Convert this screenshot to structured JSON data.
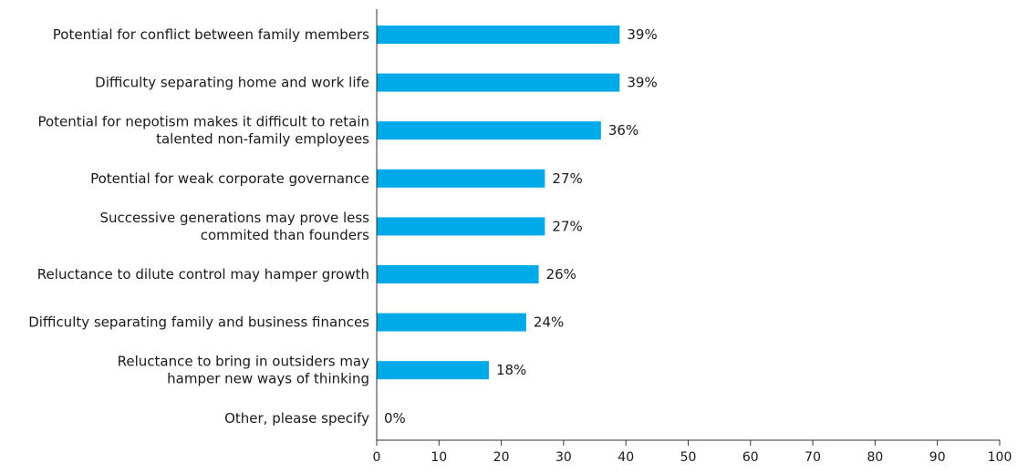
{
  "chart_data": {
    "type": "bar",
    "orientation": "horizontal",
    "title": "",
    "xlabel": "",
    "ylabel": "",
    "xlim": [
      0,
      100
    ],
    "x_ticks": [
      0,
      10,
      20,
      30,
      40,
      50,
      60,
      70,
      80,
      90,
      100
    ],
    "grid": false,
    "bar_color": "#00a9e8",
    "categories": [
      [
        "Potential for conflict between family members"
      ],
      [
        "Difficulty separating home and work life"
      ],
      [
        "Potential for nepotism makes it difficult to retain",
        "talented non-family employees"
      ],
      [
        "Potential for weak corporate governance"
      ],
      [
        "Successive generations may prove less",
        "commited than founders"
      ],
      [
        "Reluctance to dilute control may hamper growth"
      ],
      [
        "Difficulty separating family and business finances"
      ],
      [
        "Reluctance to bring in outsiders may",
        "hamper new ways of thinking"
      ],
      [
        "Other, please specify"
      ]
    ],
    "values": [
      39,
      39,
      36,
      27,
      27,
      26,
      24,
      18,
      0
    ],
    "value_labels": [
      "39%",
      "39%",
      "36%",
      "27%",
      "27%",
      "26%",
      "24%",
      "18%",
      "0%"
    ]
  }
}
